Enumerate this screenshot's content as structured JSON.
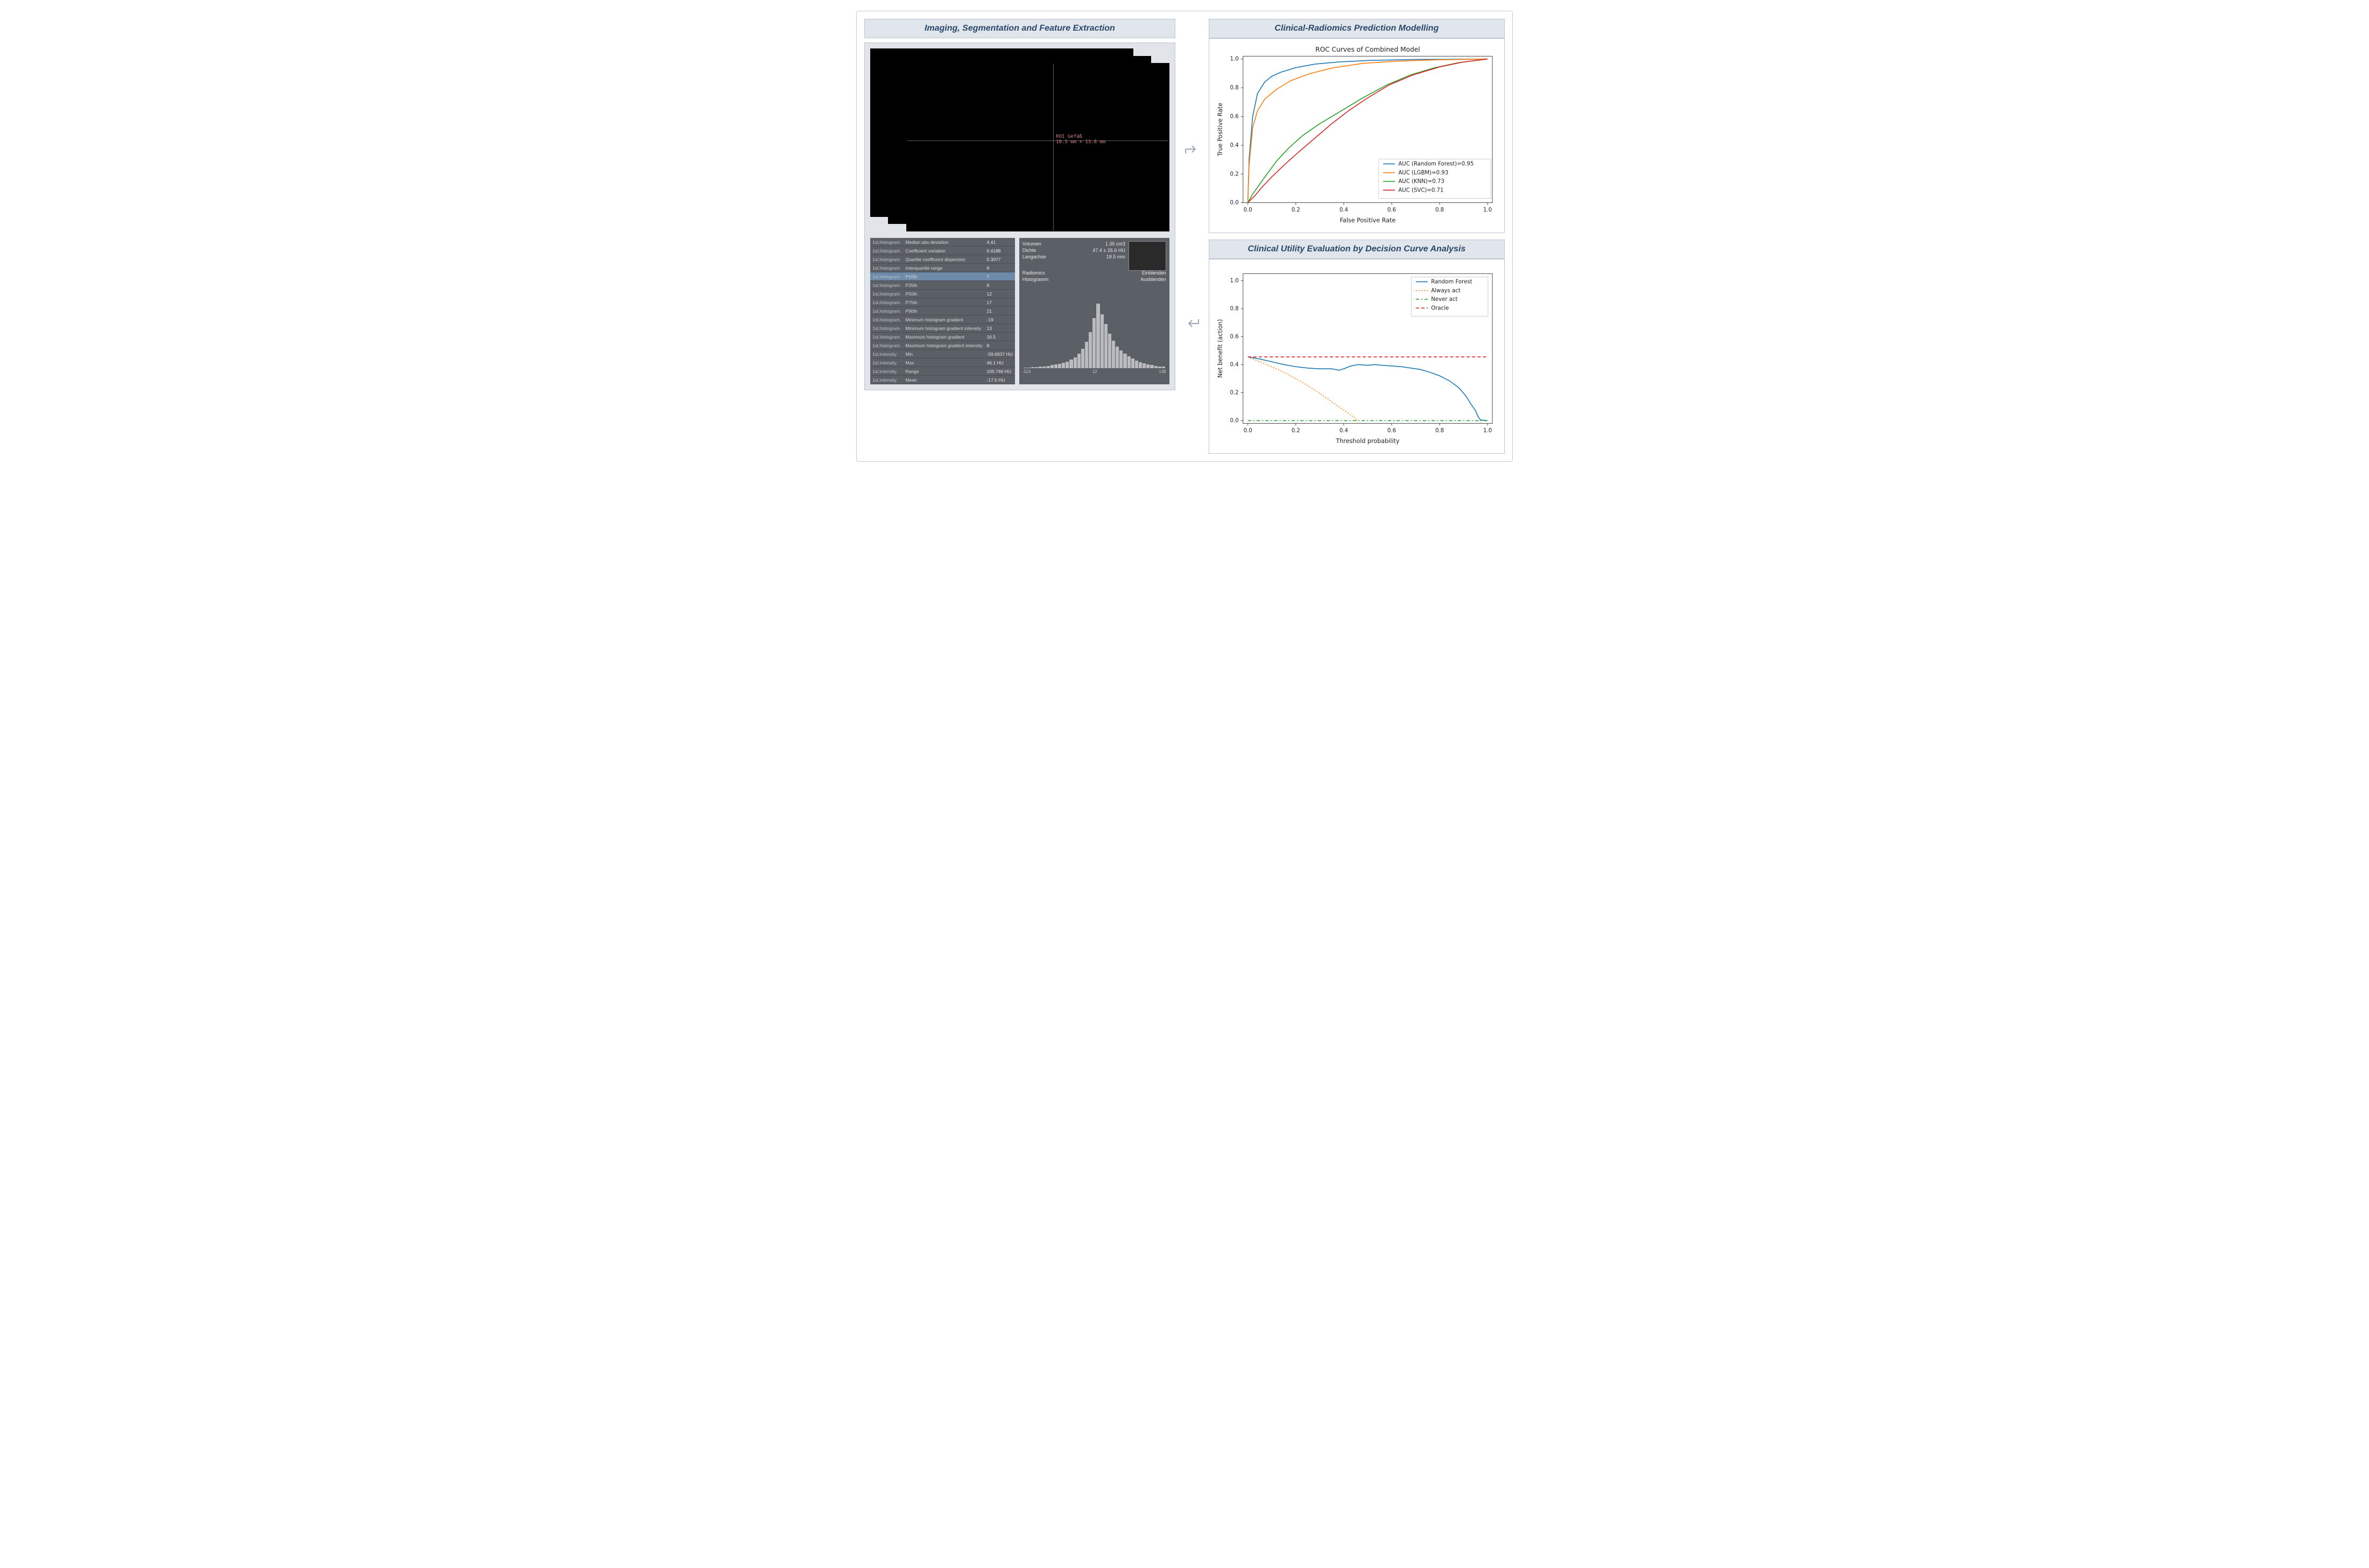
{
  "left_panel": {
    "title": "Imaging, Segmentation and Feature Extraction",
    "ct_overlay": {
      "label_line1": "ROI Gefäß",
      "label_line2": "18.5 mm × 13.8 mm"
    },
    "feature_table": {
      "highlight_index": 4,
      "rows": [
        {
          "cat": "1st.histogram.",
          "name": "Median abs deviation",
          "val": "4.41"
        },
        {
          "cat": "1st.histogram.",
          "name": "Coefficient variation",
          "val": "0.4188"
        },
        {
          "cat": "1st.histogram.",
          "name": "Quartile coefficient dispersion",
          "val": "0.3077"
        },
        {
          "cat": "1st.histogram.",
          "name": "Interquartile range",
          "val": "8"
        },
        {
          "cat": "1st.histogram.",
          "name": "P10th",
          "val": "7"
        },
        {
          "cat": "1st.histogram.",
          "name": "P25th",
          "val": "9"
        },
        {
          "cat": "1st.histogram.",
          "name": "P50th",
          "val": "12"
        },
        {
          "cat": "1st.histogram.",
          "name": "P75th",
          "val": "17"
        },
        {
          "cat": "1st.histogram.",
          "name": "P90th",
          "val": "21"
        },
        {
          "cat": "1st.histogram.",
          "name": "Minimum histogram gradient",
          "val": "-19"
        },
        {
          "cat": "1st.histogram.",
          "name": "Minimum histogram gradient intensity",
          "val": "13"
        },
        {
          "cat": "1st.histogram.",
          "name": "Maximum histogram gradient",
          "val": "16.5"
        },
        {
          "cat": "1st.histogram.",
          "name": "Maximum histogram gradient intensity",
          "val": "8"
        },
        {
          "cat": "1st.intensity.",
          "name": "Min",
          "val": "-59.6937 HU"
        },
        {
          "cat": "1st.intensity.",
          "name": "Max",
          "val": "46.1 HU"
        },
        {
          "cat": "1st.intensity.",
          "name": "Range",
          "val": "105.746 HU"
        },
        {
          "cat": "1st.intensity.",
          "name": "Mean",
          "val": "-17.5 HU"
        }
      ]
    },
    "side_panel": {
      "volumen_label": "Volumen",
      "volumen_val": "1.35 cm3",
      "dichte_label": "Dichte",
      "dichte_val": "47.4 ± 26.6 HU",
      "langachse_label": "Langachse",
      "langachse_val": "18.5 mm",
      "radiomics_label": "Radiomics",
      "einblenden": "Einblenden",
      "histogramm_label": "Histogramm",
      "ausblenden": "Ausblenden",
      "histo_bins": [
        1,
        1,
        2,
        2,
        3,
        3,
        4,
        5,
        6,
        7,
        9,
        11,
        14,
        18,
        24,
        32,
        44,
        60,
        84,
        108,
        90,
        74,
        58,
        46,
        36,
        30,
        24,
        20,
        16,
        13,
        10,
        8,
        6,
        5,
        4,
        3,
        3
      ],
      "histo_xmin": "-114",
      "histo_xmid": "12",
      "histo_xmax": "138"
    }
  },
  "roc_panel": {
    "title": "Clinical-Radiomics Prediction Modelling",
    "chart_title": "ROC Curves of Combined Model",
    "xlabel": "False Positive Rate",
    "ylabel": "True Positive Rate",
    "ticks": [
      "0.0",
      "0.2",
      "0.4",
      "0.6",
      "0.8",
      "1.0"
    ],
    "xlim": [
      -0.02,
      1.02
    ],
    "ylim": [
      0.0,
      1.02
    ],
    "background_color": "#ffffff",
    "grid_color": "#ffffff",
    "tick_fontsize": 10,
    "label_fontsize": 11,
    "line_width": 1.6,
    "series": [
      {
        "label": "AUC (Random Forest)=0.95",
        "color": "#1f77b4",
        "points": [
          [
            0,
            0
          ],
          [
            0.005,
            0.3
          ],
          [
            0.02,
            0.6
          ],
          [
            0.04,
            0.76
          ],
          [
            0.07,
            0.84
          ],
          [
            0.1,
            0.88
          ],
          [
            0.14,
            0.91
          ],
          [
            0.2,
            0.94
          ],
          [
            0.28,
            0.965
          ],
          [
            0.38,
            0.98
          ],
          [
            0.5,
            0.99
          ],
          [
            0.7,
            0.997
          ],
          [
            1.0,
            1.0
          ]
        ]
      },
      {
        "label": "AUC (LGBM)=0.93",
        "color": "#ff7f0e",
        "points": [
          [
            0,
            0
          ],
          [
            0.005,
            0.26
          ],
          [
            0.02,
            0.52
          ],
          [
            0.04,
            0.64
          ],
          [
            0.07,
            0.72
          ],
          [
            0.12,
            0.79
          ],
          [
            0.18,
            0.85
          ],
          [
            0.26,
            0.9
          ],
          [
            0.36,
            0.94
          ],
          [
            0.48,
            0.97
          ],
          [
            0.62,
            0.985
          ],
          [
            0.8,
            0.995
          ],
          [
            1.0,
            1.0
          ]
        ]
      },
      {
        "label": "AUC (KNN)=0.73",
        "color": "#2ca02c",
        "points": [
          [
            0,
            0
          ],
          [
            0.02,
            0.06
          ],
          [
            0.05,
            0.13
          ],
          [
            0.08,
            0.2
          ],
          [
            0.12,
            0.29
          ],
          [
            0.17,
            0.38
          ],
          [
            0.23,
            0.47
          ],
          [
            0.3,
            0.55
          ],
          [
            0.38,
            0.63
          ],
          [
            0.48,
            0.73
          ],
          [
            0.58,
            0.82
          ],
          [
            0.68,
            0.89
          ],
          [
            0.78,
            0.94
          ],
          [
            0.88,
            0.975
          ],
          [
            1.0,
            1.0
          ]
        ]
      },
      {
        "label": "AUC (SVC)=0.71",
        "color": "#d62728",
        "points": [
          [
            0,
            0
          ],
          [
            0.03,
            0.05
          ],
          [
            0.06,
            0.11
          ],
          [
            0.1,
            0.18
          ],
          [
            0.15,
            0.26
          ],
          [
            0.21,
            0.35
          ],
          [
            0.28,
            0.45
          ],
          [
            0.35,
            0.55
          ],
          [
            0.42,
            0.64
          ],
          [
            0.5,
            0.73
          ],
          [
            0.59,
            0.82
          ],
          [
            0.69,
            0.89
          ],
          [
            0.8,
            0.945
          ],
          [
            0.9,
            0.98
          ],
          [
            1.0,
            1.0
          ]
        ]
      }
    ]
  },
  "dca_panel": {
    "title": "Clinical Utility Evaluation by Decision Curve Analysis",
    "xlabel": "Threshold probability",
    "ylabel": "Net benefit (action)",
    "xticks": [
      "0.0",
      "0.2",
      "0.4",
      "0.6",
      "0.8",
      "1.0"
    ],
    "yticks": [
      "0.0",
      "0.2",
      "0.4",
      "0.6",
      "0.8",
      "1.0"
    ],
    "xlim": [
      -0.02,
      1.02
    ],
    "ylim": [
      -0.02,
      1.05
    ],
    "background_color": "#ffffff",
    "line_width": 1.6,
    "series": [
      {
        "label": "Random Forest",
        "color": "#1f77b4",
        "style": "solid",
        "points": [
          [
            0,
            0.455
          ],
          [
            0.05,
            0.44
          ],
          [
            0.1,
            0.42
          ],
          [
            0.15,
            0.4
          ],
          [
            0.2,
            0.385
          ],
          [
            0.25,
            0.375
          ],
          [
            0.3,
            0.37
          ],
          [
            0.35,
            0.37
          ],
          [
            0.38,
            0.36
          ],
          [
            0.4,
            0.37
          ],
          [
            0.43,
            0.39
          ],
          [
            0.46,
            0.4
          ],
          [
            0.5,
            0.395
          ],
          [
            0.53,
            0.4
          ],
          [
            0.56,
            0.395
          ],
          [
            0.6,
            0.39
          ],
          [
            0.64,
            0.385
          ],
          [
            0.68,
            0.375
          ],
          [
            0.72,
            0.365
          ],
          [
            0.76,
            0.345
          ],
          [
            0.8,
            0.32
          ],
          [
            0.84,
            0.285
          ],
          [
            0.88,
            0.235
          ],
          [
            0.91,
            0.175
          ],
          [
            0.93,
            0.12
          ],
          [
            0.95,
            0.07
          ],
          [
            0.96,
            0.03
          ],
          [
            0.97,
            0.005
          ],
          [
            1.0,
            0.0
          ]
        ]
      },
      {
        "label": "Always act",
        "color": "#ff7f0e",
        "style": "dot",
        "points": [
          [
            0,
            0.455
          ],
          [
            0.05,
            0.42
          ],
          [
            0.1,
            0.385
          ],
          [
            0.15,
            0.345
          ],
          [
            0.2,
            0.3
          ],
          [
            0.25,
            0.25
          ],
          [
            0.3,
            0.195
          ],
          [
            0.35,
            0.135
          ],
          [
            0.4,
            0.075
          ],
          [
            0.45,
            0.015
          ],
          [
            0.455,
            0.0
          ]
        ]
      },
      {
        "label": "Never act",
        "color": "#2ca02c",
        "style": "dashdot",
        "points": [
          [
            0,
            0
          ],
          [
            1.0,
            0
          ]
        ]
      },
      {
        "label": "Oracle",
        "color": "#d62728",
        "style": "dash",
        "points": [
          [
            0,
            0.455
          ],
          [
            1.0,
            0.455
          ]
        ]
      }
    ]
  }
}
